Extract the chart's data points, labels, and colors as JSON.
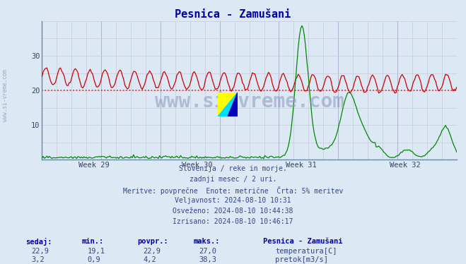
{
  "title": "Pesnica - Zamušani",
  "background_color": "#dce9f5",
  "plot_bg_color": "#dce9f5",
  "grid_color_major": "#b0b0cc",
  "grid_color_minor": "#c8c8dc",
  "temp_color": "#cc0000",
  "flow_color": "#008800",
  "dashed_line_y": 20.0,
  "dashed_line_color": "#dd2222",
  "ylim": [
    0,
    40
  ],
  "yticks": [
    10,
    20,
    30
  ],
  "week_labels": [
    "Week 29",
    "Week 30",
    "Week 31",
    "Week 32"
  ],
  "subtitle_lines": [
    "Slovenija / reke in morje.",
    "zadnji mesec / 2 uri.",
    "Meritve: povprečne  Enote: metrične  Črta: 5% meritev",
    "Veljavnost: 2024-08-10 10:31",
    "Osveženo: 2024-08-10 10:44:38",
    "Izrisano: 2024-08-10 10:46:17"
  ],
  "table_headers": [
    "sedaj:",
    "min.:",
    "povpr.:",
    "maks.:"
  ],
  "table_row1": [
    "22,9",
    "19,1",
    "22,9",
    "27,0"
  ],
  "table_row2": [
    "3,2",
    "0,9",
    "4,2",
    "38,3"
  ],
  "legend_title": "Pesnica - Zamušani",
  "legend_items": [
    "temperatura[C]",
    "pretok[m3/s]"
  ],
  "legend_colors": [
    "#cc0000",
    "#008800"
  ],
  "watermark": "www.si-vreme.com",
  "watermark_color": "#8899bb",
  "side_text": "www.si-vreme.com",
  "n_points": 336
}
